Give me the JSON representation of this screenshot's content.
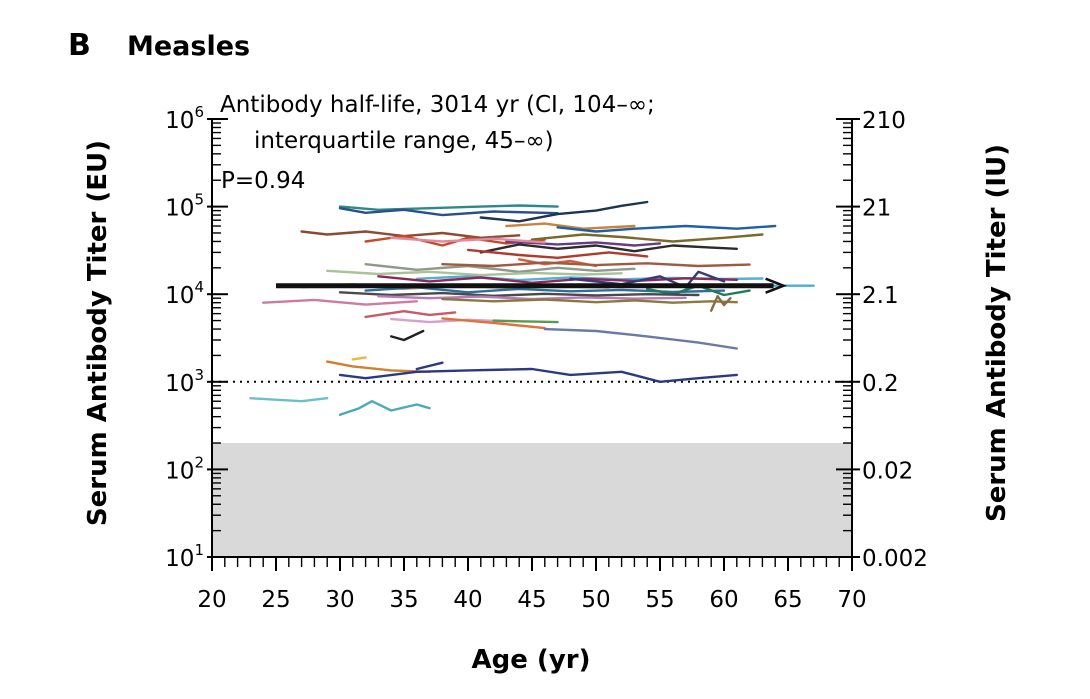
{
  "panel": {
    "letter": "B",
    "title": "Measles"
  },
  "chart_data": {
    "type": "line",
    "xlabel": "Age (yr)",
    "ylabel": "Serum Antibody Titer (EU)",
    "y2label": "Serum Antibody Titer (IU)",
    "xlim": [
      20,
      70
    ],
    "ylim": [
      10,
      1000000
    ],
    "yscale": "log",
    "x_ticks": [
      "20",
      "25",
      "30",
      "35",
      "40",
      "45",
      "50",
      "55",
      "60",
      "65",
      "70"
    ],
    "y_ticks": [
      {
        "value": 10,
        "base": "10",
        "exp": "1"
      },
      {
        "value": 100,
        "base": "10",
        "exp": "2"
      },
      {
        "value": 1000,
        "base": "10",
        "exp": "3"
      },
      {
        "value": 10000,
        "base": "10",
        "exp": "4"
      },
      {
        "value": 100000,
        "base": "10",
        "exp": "5"
      },
      {
        "value": 1000000,
        "base": "10",
        "exp": "6"
      }
    ],
    "y2_ticks": [
      {
        "value": 10,
        "label": "0.002"
      },
      {
        "value": 100,
        "label": "0.02"
      },
      {
        "value": 1000,
        "label": "0.2"
      },
      {
        "value": 10000,
        "label": "2.1"
      },
      {
        "value": 100000,
        "label": "21"
      },
      {
        "value": 1000000,
        "label": "210"
      }
    ],
    "annotations": [
      "Antibody half-life, 3014 yr (CI, 104–∞;",
      "interquartile range, 45–∞)",
      "P=0.94"
    ],
    "threshold_line": {
      "y": 1000,
      "style": "dotted"
    },
    "shaded_region": {
      "y_from": 10,
      "y_to": 200,
      "color": "#d9d9d9"
    },
    "trend": {
      "x": [
        25,
        64.5
      ],
      "y": [
        12500,
        12500
      ],
      "color": "#111111"
    },
    "series": [
      {
        "color": "#2a8a86",
        "x": [
          30,
          33,
          37,
          41,
          44,
          47
        ],
        "y": [
          100000,
          92000,
          96000,
          100000,
          103000,
          100000
        ]
      },
      {
        "color": "#2b4f8a",
        "x": [
          30,
          32,
          35,
          38,
          42,
          47
        ],
        "y": [
          96000,
          85000,
          92000,
          80000,
          88000,
          84000
        ]
      },
      {
        "color": "#1c3550",
        "x": [
          41,
          44,
          47,
          50,
          52,
          54
        ],
        "y": [
          75000,
          68000,
          82000,
          90000,
          102000,
          113000
        ]
      },
      {
        "color": "#c9843a",
        "x": [
          43,
          46,
          49,
          53
        ],
        "y": [
          60000,
          64000,
          56000,
          60000
        ]
      },
      {
        "color": "#1e5fa8",
        "x": [
          47,
          50,
          53,
          57,
          61,
          64
        ],
        "y": [
          58000,
          52000,
          56000,
          60000,
          56000,
          60000
        ]
      },
      {
        "color": "#8b4a32",
        "x": [
          27,
          29,
          32,
          35,
          38,
          41,
          44
        ],
        "y": [
          52000,
          48000,
          52000,
          46000,
          50000,
          44000,
          47000
        ]
      },
      {
        "color": "#c44a2a",
        "x": [
          32,
          35,
          38,
          40,
          43,
          46
        ],
        "y": [
          40000,
          46000,
          36000,
          44000,
          38000,
          42000
        ]
      },
      {
        "color": "#7a6a2a",
        "x": [
          45,
          49,
          52,
          56,
          60,
          63
        ],
        "y": [
          42000,
          48000,
          45000,
          40000,
          44000,
          48000
        ]
      },
      {
        "color": "#2c2c2c",
        "x": [
          41,
          44,
          47,
          50,
          53,
          56,
          59,
          61
        ],
        "y": [
          30000,
          37000,
          33000,
          36000,
          31000,
          36000,
          34000,
          33000
        ]
      },
      {
        "color": "#6a3a8a",
        "x": [
          43,
          47,
          50,
          53,
          55
        ],
        "y": [
          40000,
          37000,
          39000,
          36000,
          38000
        ]
      },
      {
        "color": "#e08aa0",
        "x": [
          34,
          38,
          42,
          46
        ],
        "y": [
          44000,
          40000,
          43000,
          39000
        ]
      },
      {
        "color": "#b03a2e",
        "x": [
          40,
          44,
          47,
          51,
          54
        ],
        "y": [
          32000,
          28000,
          26000,
          30000,
          27000
        ]
      },
      {
        "color": "#d06040",
        "x": [
          44,
          46,
          48,
          50
        ],
        "y": [
          25000,
          22000,
          24000,
          21000
        ]
      },
      {
        "color": "#8f9a8a",
        "x": [
          32,
          36,
          40,
          44,
          47,
          50,
          53
        ],
        "y": [
          22000,
          19000,
          21000,
          18000,
          20000,
          18500,
          19500
        ]
      },
      {
        "color": "#a05a40",
        "x": [
          38,
          42,
          46,
          50,
          54,
          58,
          62
        ],
        "y": [
          22000,
          21000,
          23000,
          21500,
          22500,
          21000,
          21800
        ]
      },
      {
        "color": "#a9c29a",
        "x": [
          29,
          33,
          37,
          41,
          45,
          49,
          52
        ],
        "y": [
          18500,
          17000,
          18000,
          16500,
          17500,
          16800,
          17300
        ]
      },
      {
        "color": "#5aaed0",
        "x": [
          36,
          40,
          44,
          48,
          52,
          56,
          60,
          63
        ],
        "y": [
          15000,
          16000,
          14500,
          15500,
          14800,
          15300,
          14900,
          15100
        ]
      },
      {
        "color": "#8a2a5a",
        "x": [
          33,
          37,
          41,
          45,
          49,
          53,
          57,
          61
        ],
        "y": [
          16000,
          14000,
          15500,
          13500,
          15000,
          14200,
          15200,
          14600
        ]
      },
      {
        "color": "#3a3a7a",
        "x": [
          48,
          52,
          55,
          57,
          58,
          60
        ],
        "y": [
          15000,
          13000,
          16000,
          12000,
          18000,
          14000
        ]
      },
      {
        "color": "#d9a080",
        "x": [
          27,
          31,
          35,
          39,
          43,
          47,
          51
        ],
        "y": [
          12000,
          13000,
          11500,
          12500,
          11800,
          12300,
          11900
        ]
      },
      {
        "color": "#2e6f9e",
        "x": [
          32,
          36,
          40,
          44,
          48,
          52,
          56,
          60
        ],
        "y": [
          11000,
          12000,
          10500,
          11500,
          10800,
          11200,
          10600,
          11000
        ]
      },
      {
        "color": "#1f7a5c",
        "x": [
          54,
          56,
          58,
          60,
          62
        ],
        "y": [
          11500,
          10000,
          12500,
          9800,
          11000
        ]
      },
      {
        "color": "#4a4a4a",
        "x": [
          30,
          34,
          38,
          42,
          46,
          50,
          54,
          58
        ],
        "y": [
          10500,
          9800,
          10300,
          9600,
          10100,
          9700,
          10000,
          9800
        ]
      },
      {
        "color": "#b87ab8",
        "x": [
          33,
          37,
          41,
          45,
          49,
          53,
          57
        ],
        "y": [
          9500,
          9000,
          9400,
          8800,
          9200,
          8900,
          9100
        ]
      },
      {
        "color": "#8a7a40",
        "x": [
          38,
          42,
          46,
          50,
          53,
          56,
          59,
          61
        ],
        "y": [
          8800,
          8300,
          8700,
          8100,
          8500,
          8000,
          8300,
          8100
        ]
      },
      {
        "color": "#8a6a40",
        "x": [
          59,
          59.5,
          60,
          60.5
        ],
        "y": [
          6500,
          9500,
          7500,
          9000
        ]
      },
      {
        "color": "#d07aa0",
        "x": [
          24,
          28,
          32,
          36
        ],
        "y": [
          8000,
          8600,
          7600,
          8300
        ]
      },
      {
        "color": "#c75a6a",
        "x": [
          32,
          35,
          37,
          39
        ],
        "y": [
          5500,
          6400,
          5800,
          6200
        ]
      },
      {
        "color": "#d6a0c8",
        "x": [
          34,
          37,
          40,
          43
        ],
        "y": [
          5200,
          4800,
          5100,
          4900
        ]
      },
      {
        "color": "#5a9a4a",
        "x": [
          42,
          44,
          47
        ],
        "y": [
          5000,
          4900,
          4800
        ]
      },
      {
        "color": "#e07040",
        "x": [
          38,
          42,
          46
        ],
        "y": [
          5300,
          4700,
          4100
        ]
      },
      {
        "color": "#6a7aa8",
        "x": [
          46,
          50,
          54,
          58,
          61
        ],
        "y": [
          4000,
          3800,
          3300,
          2800,
          2400
        ]
      },
      {
        "color": "#222222",
        "x": [
          34,
          35,
          36.5
        ],
        "y": [
          3300,
          3000,
          3800
        ]
      },
      {
        "color": "#d08030",
        "x": [
          29,
          31,
          34,
          37
        ],
        "y": [
          1700,
          1500,
          1350,
          1300
        ]
      },
      {
        "color": "#e8b840",
        "x": [
          31,
          32
        ],
        "y": [
          1800,
          1900
        ]
      },
      {
        "color": "#2b3a80",
        "x": [
          30,
          32,
          36,
          40,
          45,
          48,
          52,
          55,
          58,
          61
        ],
        "y": [
          1200,
          1100,
          1300,
          1350,
          1400,
          1200,
          1300,
          1000,
          1100,
          1200
        ]
      },
      {
        "color": "#2b3a80",
        "x": [
          36,
          38
        ],
        "y": [
          1400,
          1650
        ]
      },
      {
        "color": "#6cbfc8",
        "x": [
          23,
          27,
          29
        ],
        "y": [
          650,
          600,
          650
        ]
      },
      {
        "color": "#4aaabb",
        "x": [
          30,
          31.5,
          32.5,
          34,
          36,
          37
        ],
        "y": [
          420,
          500,
          600,
          470,
          550,
          500
        ]
      },
      {
        "color": "#4ab0c8",
        "x": [
          63,
          67
        ],
        "y": [
          12500,
          12500
        ]
      }
    ]
  }
}
